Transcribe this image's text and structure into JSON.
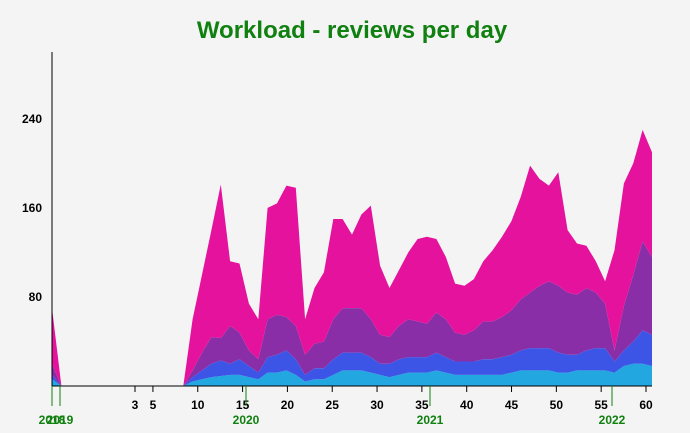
{
  "chart_data": {
    "type": "area",
    "title": "Workload - reviews per day",
    "xlabel": "",
    "ylabel": "",
    "ylim": [
      0,
      300
    ],
    "y_ticks": [
      80,
      160,
      240
    ],
    "x_ticks_numeric": [
      "3",
      "5",
      "10",
      "15",
      "20",
      "25",
      "30",
      "35",
      "40",
      "45",
      "50",
      "55",
      "60"
    ],
    "x_ticks_years": [
      "2018",
      "2019",
      "2020",
      "2021",
      "2022"
    ],
    "stacked": true,
    "grid": false,
    "legend": "none",
    "colors": [
      "#22a7e0",
      "#3d55e6",
      "#8a2ea8",
      "#e4129c"
    ],
    "x": [
      0,
      1,
      2,
      3,
      4,
      5,
      6,
      7,
      8,
      9,
      10,
      11,
      12,
      13,
      14,
      15,
      16,
      17,
      18,
      19,
      20,
      21,
      22,
      23,
      24,
      25,
      26,
      27,
      28,
      29,
      30,
      31,
      32,
      33,
      34,
      35,
      36,
      37,
      38,
      39,
      40,
      41,
      42,
      43,
      44,
      45,
      46,
      47,
      48,
      49,
      50,
      51,
      52,
      53,
      54,
      55,
      56,
      57,
      58,
      59,
      60,
      61,
      62,
      63,
      64
    ],
    "series": [
      {
        "values": [
          6,
          0,
          0,
          0,
          0,
          0,
          0,
          0,
          0,
          0,
          0,
          0,
          0,
          0,
          0,
          4,
          6,
          8,
          9,
          10,
          10,
          8,
          6,
          12,
          12,
          14,
          10,
          4,
          6,
          6,
          10,
          14,
          14,
          14,
          12,
          10,
          8,
          10,
          12,
          12,
          12,
          14,
          12,
          10,
          10,
          10,
          10,
          10,
          10,
          12,
          14,
          14,
          14,
          14,
          12,
          12,
          14,
          14,
          14,
          14,
          12,
          18,
          20,
          20,
          18
        ]
      },
      {
        "values": [
          4,
          0,
          0,
          0,
          0,
          0,
          0,
          0,
          0,
          0,
          0,
          0,
          0,
          0,
          0,
          4,
          8,
          12,
          14,
          10,
          14,
          10,
          6,
          14,
          16,
          18,
          14,
          6,
          10,
          10,
          14,
          16,
          16,
          16,
          14,
          10,
          12,
          14,
          14,
          14,
          14,
          16,
          14,
          12,
          12,
          12,
          14,
          14,
          16,
          16,
          18,
          20,
          20,
          20,
          18,
          16,
          14,
          18,
          20,
          20,
          10,
          14,
          20,
          30,
          28
        ]
      },
      {
        "values": [
          10,
          0,
          0,
          0,
          0,
          0,
          0,
          0,
          0,
          0,
          0,
          0,
          0,
          0,
          0,
          6,
          16,
          24,
          20,
          34,
          24,
          14,
          12,
          34,
          36,
          30,
          30,
          18,
          22,
          24,
          36,
          40,
          40,
          40,
          34,
          26,
          24,
          30,
          34,
          32,
          30,
          36,
          34,
          26,
          24,
          28,
          34,
          34,
          36,
          40,
          46,
          50,
          56,
          60,
          60,
          56,
          54,
          56,
          50,
          40,
          10,
          40,
          60,
          80,
          70
        ]
      },
      {
        "values": [
          50,
          0,
          0,
          0,
          0,
          0,
          0,
          0,
          0,
          0,
          0,
          0,
          0,
          0,
          0,
          46,
          70,
          96,
          138,
          58,
          62,
          42,
          36,
          100,
          100,
          118,
          124,
          32,
          50,
          62,
          90,
          80,
          66,
          84,
          102,
          62,
          44,
          50,
          60,
          74,
          78,
          66,
          56,
          44,
          44,
          46,
          54,
          64,
          72,
          80,
          92,
          114,
          96,
          86,
          102,
          56,
          46,
          38,
          28,
          20,
          90,
          110,
          100,
          100,
          94
        ]
      }
    ]
  }
}
